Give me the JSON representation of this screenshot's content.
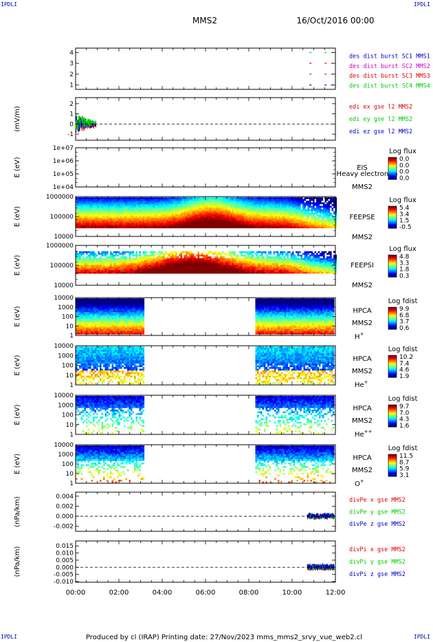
{
  "header": {
    "corner_left": "IPDLI",
    "corner_right": "IPDLI",
    "mission": "MMS2",
    "datetime": "16/Oct/2016 00:00",
    "bottom_left": "IPDLI",
    "bottom_right": "IPDLI"
  },
  "footer": {
    "text": "Produced by cl (IRAP)   Printing date: 27/Nov/2023   mms_mms2_srvy_vue_web2.cl"
  },
  "colors": {
    "spacecraft1": "#0000cc",
    "spacecraft2": "#cc00cc",
    "spacecraft3": "#dd0000",
    "spacecraft4": "#00cc00",
    "series_x": "#dd0000",
    "series_y": "#00cc00",
    "series_z": "#0000cc"
  },
  "chart_data": [
    {
      "type": "scatter",
      "id": "burst",
      "ylim": [
        0.6,
        4.4
      ],
      "yticks": [
        "1",
        "2",
        "3",
        "4"
      ],
      "legend": [
        "des dist burst SC1 MMS1",
        "des dist burst SC2 MMS2",
        "des dist burst SC3 MMS3",
        "des dist burst SC4 MMS4"
      ],
      "series": [
        {
          "level": 1,
          "x_hours": [
            10.8,
            11.5,
            11.8
          ]
        },
        {
          "level": 2,
          "x_hours": [
            10.8,
            11.5,
            11.8
          ]
        },
        {
          "level": 3,
          "x_hours": [
            10.8,
            11.5,
            11.8
          ]
        },
        {
          "level": 4,
          "x_hours": [
            10.8,
            11.5,
            11.8
          ]
        }
      ]
    },
    {
      "type": "line",
      "id": "edi",
      "ylabel": "(mV/m)",
      "ylim": [
        -1.6,
        2.6
      ],
      "yticks": [
        "-1",
        "0",
        "1",
        "2"
      ],
      "legend": [
        "edi ex gse l2 MMS2",
        "edi ey gse l2 MMS2",
        "edi ez gse l2 MMS2"
      ],
      "active_x_hours": [
        0,
        0.95
      ]
    },
    {
      "type": "heatmap",
      "id": "eis",
      "ylabel": "E (eV)",
      "yticks": [
        "1e+04",
        "1e+05",
        "1e+06",
        "1e+07"
      ],
      "instrument": "EIS",
      "note": "Heavy electron to",
      "spacecraft": "MMS2",
      "colorbar_title": "Log flux",
      "colorbar_ticks": [
        "0.0",
        "0.0",
        "0.0",
        "0.0"
      ]
    },
    {
      "type": "heatmap",
      "id": "feepse",
      "ylabel": "E (eV)",
      "yticks": [
        "10000",
        "100000",
        "1000000"
      ],
      "instrument": "FEEPSE",
      "spacecraft": "MMS2",
      "colorbar_title": "Log flux",
      "colorbar_ticks": [
        "5.4",
        "3.4",
        "1.5",
        "-0.5"
      ]
    },
    {
      "type": "heatmap",
      "id": "feepsi",
      "ylabel": "E (eV)",
      "yticks": [
        "10000",
        "100000",
        "1000000"
      ],
      "instrument": "FEEPSI",
      "spacecraft": "MMS2",
      "colorbar_title": "Log flux",
      "colorbar_ticks": [
        "4.8",
        "3.3",
        "1.8",
        "0.3"
      ]
    },
    {
      "type": "heatmap",
      "id": "hpca_h",
      "ylabel": "E (eV)",
      "yticks": [
        "1",
        "10",
        "100",
        "1000",
        "10000"
      ],
      "instrument": "HPCA",
      "spacecraft": "MMS2",
      "species": "H",
      "species_sup": "+",
      "colorbar_title": "Log fdist",
      "colorbar_ticks": [
        "9.9",
        "6.8",
        "3.7",
        "0.6"
      ],
      "coverage_hours": [
        [
          0,
          3.1
        ],
        [
          8.3,
          11.95
        ]
      ]
    },
    {
      "type": "heatmap",
      "id": "hpca_he",
      "ylabel": "E (eV)",
      "yticks": [
        "1",
        "10",
        "100",
        "1000",
        "10000"
      ],
      "instrument": "HPCA",
      "spacecraft": "MMS2",
      "species": "He",
      "species_sup": "+",
      "colorbar_title": "Log fdist",
      "colorbar_ticks": [
        "10.2",
        "7.4",
        "4.6",
        "1.9"
      ],
      "coverage_hours": [
        [
          0,
          3.1
        ],
        [
          8.3,
          11.95
        ]
      ]
    },
    {
      "type": "heatmap",
      "id": "hpca_hepp",
      "ylabel": "E (eV)",
      "yticks": [
        "1",
        "10",
        "100",
        "1000",
        "10000"
      ],
      "instrument": "HPCA",
      "spacecraft": "MMS2",
      "species": "He",
      "species_sup": "++",
      "colorbar_title": "Log fdist",
      "colorbar_ticks": [
        "9.7",
        "7.0",
        "4.3",
        "1.6"
      ],
      "coverage_hours": [
        [
          0,
          3.1
        ],
        [
          8.3,
          11.95
        ]
      ]
    },
    {
      "type": "heatmap",
      "id": "hpca_o",
      "ylabel": "E (eV)",
      "yticks": [
        "1",
        "10",
        "100",
        "1000",
        "10000"
      ],
      "instrument": "HPCA",
      "spacecraft": "MMS2",
      "species": "O",
      "species_sup": "+",
      "colorbar_title": "Log fdist",
      "colorbar_ticks": [
        "11.5",
        "8.7",
        "5.9",
        "3.1"
      ],
      "coverage_hours": [
        [
          0,
          3.1
        ],
        [
          8.3,
          11.95
        ]
      ]
    },
    {
      "type": "line",
      "id": "divpe",
      "ylabel": "(nPa/km)",
      "ylim": [
        -0.003,
        0.0048
      ],
      "yticks": [
        "-0.002",
        "0.000",
        "0.002",
        "0.004"
      ],
      "legend": [
        "divPe x gse MMS2",
        "divPe y gse MMS2",
        "divPe z gse MMS2"
      ],
      "active_x_hours": [
        10.7,
        11.95
      ]
    },
    {
      "type": "line",
      "id": "divpi",
      "ylabel": "(nPa/km)",
      "ylim": [
        -0.0105,
        0.0185
      ],
      "yticks": [
        "-0.010",
        "-0.005",
        "0.000",
        "0.005",
        "0.010",
        "0.015"
      ],
      "legend": [
        "divPi x gse MMS2",
        "divPi y gse MMS2",
        "divPi z gse MMS2"
      ],
      "active_x_hours": [
        10.7,
        11.95
      ]
    }
  ],
  "x_axis": {
    "ticks": [
      "00:00",
      "02:00",
      "04:00",
      "06:00",
      "08:00",
      "10:00",
      "12:00"
    ],
    "range_hours": [
      0,
      12
    ]
  }
}
